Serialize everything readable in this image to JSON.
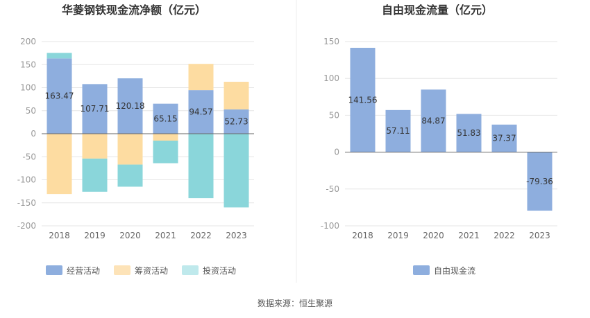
{
  "chart_data": [
    {
      "type": "bar",
      "stacked": true,
      "title": "华菱钢铁现金流净额（亿元）",
      "categories": [
        "2018",
        "2019",
        "2020",
        "2021",
        "2022",
        "2023"
      ],
      "ylim": [
        -200,
        200
      ],
      "yticks": [
        200,
        150,
        100,
        50,
        0,
        -50,
        -100,
        -150,
        -200
      ],
      "series": [
        {
          "name": "经营活动",
          "color": "#8eaede",
          "values": [
            163.47,
            107.71,
            120.18,
            65.15,
            94.57,
            52.73
          ]
        },
        {
          "name": "筹资活动",
          "color": "#fddca1",
          "values": [
            -131,
            -54,
            -67,
            -15,
            57,
            60
          ]
        },
        {
          "name": "投资活动",
          "color": "#8ad6da",
          "values": [
            12,
            -72,
            -48,
            -49,
            -140,
            -160
          ]
        }
      ],
      "data_labels": [
        "163.47",
        "107.71",
        "120.18",
        "65.15",
        "94.57",
        "52.73"
      ],
      "legend": [
        "经营活动",
        "筹资活动",
        "投资活动"
      ]
    },
    {
      "type": "bar",
      "title": "自由现金流量（亿元）",
      "categories": [
        "2018",
        "2019",
        "2020",
        "2021",
        "2022",
        "2023"
      ],
      "ylim": [
        -100,
        150
      ],
      "yticks": [
        150,
        100,
        50,
        0,
        -50,
        -100
      ],
      "series": [
        {
          "name": "自由现金流",
          "color": "#8eaede",
          "values": [
            141.56,
            57.11,
            84.87,
            51.83,
            37.37,
            -79.36
          ]
        }
      ],
      "data_labels": [
        "141.56",
        "57.11",
        "84.87",
        "51.83",
        "37.37",
        "-79.36"
      ],
      "legend": [
        "自由现金流"
      ]
    }
  ],
  "footer": {
    "source": "数据来源：恒生聚源"
  }
}
